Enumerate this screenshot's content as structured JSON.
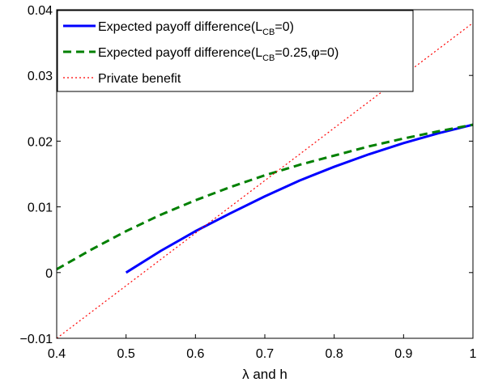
{
  "chart_data": {
    "type": "line",
    "xlabel": "λ and h",
    "ylabel": "",
    "xlim": [
      0.4,
      1.0
    ],
    "ylim": [
      -0.01,
      0.04
    ],
    "x_ticks": [
      "0.4",
      "0.5",
      "0.6",
      "0.7",
      "0.8",
      "0.9",
      "1"
    ],
    "y_ticks": [
      "−0.01",
      "0",
      "0.01",
      "0.02",
      "0.03",
      "0.04"
    ],
    "grid": false,
    "legend_position": "top-left",
    "series": [
      {
        "name": "Expected payoff difference(L_CB=0)",
        "legend_main": "Expected payoff difference(L",
        "legend_sub": "CB",
        "legend_tail": "=0)",
        "color": "#0000ff",
        "style": "solid",
        "x": [
          0.5,
          0.55,
          0.6,
          0.65,
          0.7,
          0.75,
          0.8,
          0.85,
          0.9,
          0.95,
          1.0
        ],
        "y": [
          0.0,
          0.0033,
          0.0063,
          0.009,
          0.0116,
          0.014,
          0.0161,
          0.018,
          0.0197,
          0.0212,
          0.0225
        ]
      },
      {
        "name": "Expected payoff difference(L_CB=0.25,φ=0)",
        "legend_main": "Expected payoff difference(L",
        "legend_sub": "CB",
        "legend_tail": "=0.25,φ=0)",
        "color": "#008000",
        "style": "dashed",
        "x": [
          0.4,
          0.45,
          0.5,
          0.55,
          0.6,
          0.65,
          0.7,
          0.75,
          0.8,
          0.85,
          0.9,
          0.95,
          1.0
        ],
        "y": [
          0.0005,
          0.0035,
          0.0063,
          0.0088,
          0.011,
          0.013,
          0.0148,
          0.0164,
          0.0178,
          0.0192,
          0.0204,
          0.0215,
          0.0225
        ]
      },
      {
        "name": "Private benefit",
        "legend_main": "Private benefit",
        "legend_sub": "",
        "legend_tail": "",
        "color": "#ff0000",
        "style": "dotted",
        "x": [
          0.4,
          1.0
        ],
        "y": [
          -0.01,
          0.038
        ]
      }
    ]
  }
}
